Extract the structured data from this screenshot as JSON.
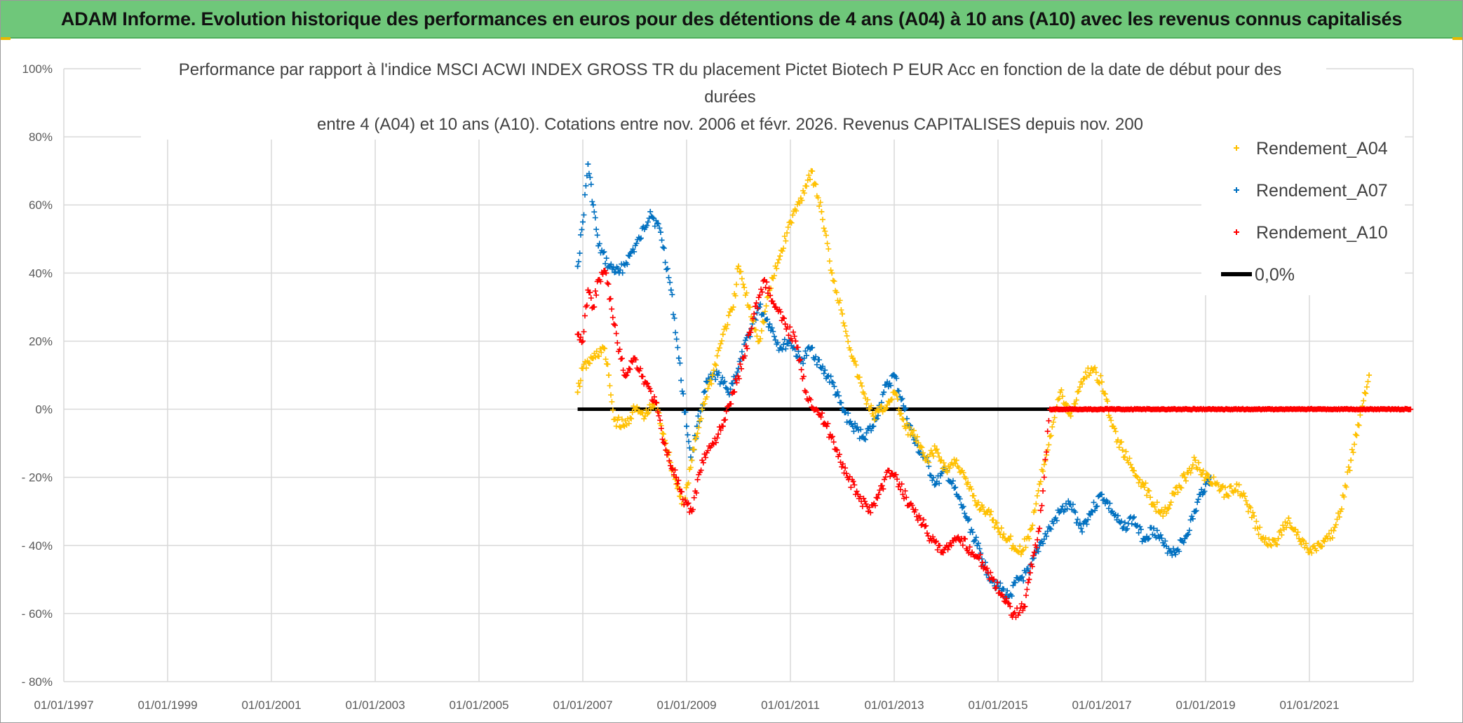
{
  "banner": {
    "title": "ADAM Informe. Evolution historique des performances en euros pour des détentions de 4 ans (A04) à 10 ans (A10) avec les revenus connus capitalisés"
  },
  "colors": {
    "a04": "#ffc000",
    "a07": "#0070c0",
    "a10": "#ff0000",
    "zero": "#000000",
    "banner": "#6fc77a",
    "grid": "#d9d9d9"
  },
  "chart_data": {
    "type": "scatter",
    "title_lines": [
      "Performance par rapport à l'indice MSCI ACWI INDEX GROSS TR  du placement Pictet Biotech P EUR Acc en fonction de la date de début pour des",
      "durées",
      "entre 4 (A04) et 10 ans (A10). Cotations entre nov. 2006 et févr. 2026. Revenus CAPITALISES depuis nov. 200"
    ],
    "x_axis": {
      "min": 1997.0,
      "max": 2023.0,
      "tick_values": [
        1997,
        1999,
        2001,
        2003,
        2005,
        2007,
        2009,
        2011,
        2013,
        2015,
        2017,
        2019,
        2021
      ],
      "tick_labels": [
        "01/01/1997",
        "01/01/1999",
        "01/01/2001",
        "01/01/2003",
        "01/01/2005",
        "01/01/2007",
        "01/01/2009",
        "01/01/2011",
        "01/01/2013",
        "01/01/2015",
        "01/01/2017",
        "01/01/2019",
        "01/01/2021"
      ]
    },
    "y_axis": {
      "min": -80,
      "max": 100,
      "tick_values": [
        100,
        80,
        60,
        40,
        20,
        0,
        -20,
        -40,
        -60,
        -80
      ],
      "tick_labels": [
        "100%",
        "80%",
        "60%",
        "40%",
        "20%",
        "0%",
        "- 20%",
        "- 40%",
        "- 60%",
        "- 80%"
      ]
    },
    "legend_position": "top-right",
    "series": [
      {
        "key": "a04",
        "name": "Rendement_A04",
        "marker": "+",
        "points": [
          [
            2006.9,
            5
          ],
          [
            2007.0,
            12
          ],
          [
            2007.2,
            15
          ],
          [
            2007.4,
            18
          ],
          [
            2007.5,
            10
          ],
          [
            2007.6,
            -3
          ],
          [
            2007.8,
            -5
          ],
          [
            2008.0,
            0
          ],
          [
            2008.2,
            -2
          ],
          [
            2008.4,
            2
          ],
          [
            2008.6,
            -10
          ],
          [
            2008.8,
            -22
          ],
          [
            2008.95,
            -28
          ],
          [
            2009.1,
            -15
          ],
          [
            2009.3,
            0
          ],
          [
            2009.5,
            10
          ],
          [
            2009.7,
            22
          ],
          [
            2009.9,
            30
          ],
          [
            2010.0,
            42
          ],
          [
            2010.2,
            30
          ],
          [
            2010.4,
            20
          ],
          [
            2010.6,
            35
          ],
          [
            2010.8,
            45
          ],
          [
            2011.0,
            55
          ],
          [
            2011.2,
            62
          ],
          [
            2011.4,
            70
          ],
          [
            2011.6,
            58
          ],
          [
            2011.8,
            40
          ],
          [
            2012.0,
            28
          ],
          [
            2012.2,
            15
          ],
          [
            2012.4,
            5
          ],
          [
            2012.6,
            -2
          ],
          [
            2012.8,
            0
          ],
          [
            2013.0,
            5
          ],
          [
            2013.2,
            -5
          ],
          [
            2013.4,
            -8
          ],
          [
            2013.6,
            -15
          ],
          [
            2013.8,
            -12
          ],
          [
            2014.0,
            -18
          ],
          [
            2014.2,
            -15
          ],
          [
            2014.4,
            -22
          ],
          [
            2014.6,
            -28
          ],
          [
            2014.8,
            -30
          ],
          [
            2015.0,
            -35
          ],
          [
            2015.2,
            -38
          ],
          [
            2015.4,
            -42
          ],
          [
            2015.6,
            -38
          ],
          [
            2015.8,
            -22
          ],
          [
            2016.0,
            -8
          ],
          [
            2016.2,
            5
          ],
          [
            2016.4,
            -2
          ],
          [
            2016.6,
            8
          ],
          [
            2016.8,
            12
          ],
          [
            2017.0,
            8
          ],
          [
            2017.2,
            -5
          ],
          [
            2017.4,
            -12
          ],
          [
            2017.6,
            -18
          ],
          [
            2017.8,
            -22
          ],
          [
            2018.0,
            -28
          ],
          [
            2018.2,
            -30
          ],
          [
            2018.4,
            -25
          ],
          [
            2018.6,
            -20
          ],
          [
            2018.8,
            -15
          ],
          [
            2019.0,
            -20
          ],
          [
            2019.2,
            -22
          ],
          [
            2019.4,
            -25
          ],
          [
            2019.6,
            -22
          ],
          [
            2019.8,
            -28
          ],
          [
            2020.0,
            -35
          ],
          [
            2020.2,
            -40
          ],
          [
            2020.4,
            -38
          ],
          [
            2020.6,
            -32
          ],
          [
            2020.8,
            -38
          ],
          [
            2021.0,
            -42
          ],
          [
            2021.2,
            -40
          ],
          [
            2021.4,
            -38
          ],
          [
            2021.6,
            -30
          ],
          [
            2021.8,
            -15
          ],
          [
            2022.0,
            0
          ],
          [
            2022.15,
            10
          ]
        ]
      },
      {
        "key": "a07",
        "name": "Rendement_A07",
        "marker": "+",
        "points": [
          [
            2006.9,
            42
          ],
          [
            2007.0,
            55
          ],
          [
            2007.1,
            72
          ],
          [
            2007.2,
            60
          ],
          [
            2007.3,
            48
          ],
          [
            2007.5,
            42
          ],
          [
            2007.7,
            40
          ],
          [
            2007.9,
            45
          ],
          [
            2008.1,
            50
          ],
          [
            2008.3,
            58
          ],
          [
            2008.5,
            52
          ],
          [
            2008.7,
            35
          ],
          [
            2008.85,
            15
          ],
          [
            2009.0,
            -5
          ],
          [
            2009.1,
            -15
          ],
          [
            2009.2,
            -5
          ],
          [
            2009.4,
            8
          ],
          [
            2009.6,
            10
          ],
          [
            2009.8,
            5
          ],
          [
            2010.0,
            12
          ],
          [
            2010.2,
            22
          ],
          [
            2010.4,
            30
          ],
          [
            2010.6,
            25
          ],
          [
            2010.8,
            18
          ],
          [
            2011.0,
            20
          ],
          [
            2011.2,
            14
          ],
          [
            2011.4,
            18
          ],
          [
            2011.6,
            12
          ],
          [
            2011.8,
            8
          ],
          [
            2012.0,
            0
          ],
          [
            2012.2,
            -5
          ],
          [
            2012.4,
            -8
          ],
          [
            2012.6,
            -5
          ],
          [
            2012.8,
            5
          ],
          [
            2013.0,
            10
          ],
          [
            2013.2,
            0
          ],
          [
            2013.4,
            -10
          ],
          [
            2013.6,
            -15
          ],
          [
            2013.8,
            -22
          ],
          [
            2014.0,
            -18
          ],
          [
            2014.2,
            -25
          ],
          [
            2014.4,
            -32
          ],
          [
            2014.6,
            -40
          ],
          [
            2014.8,
            -48
          ],
          [
            2015.0,
            -52
          ],
          [
            2015.2,
            -55
          ],
          [
            2015.4,
            -50
          ],
          [
            2015.6,
            -48
          ],
          [
            2015.8,
            -40
          ],
          [
            2016.0,
            -35
          ],
          [
            2016.2,
            -30
          ],
          [
            2016.4,
            -28
          ],
          [
            2016.6,
            -35
          ],
          [
            2016.8,
            -30
          ],
          [
            2017.0,
            -25
          ],
          [
            2017.2,
            -30
          ],
          [
            2017.4,
            -35
          ],
          [
            2017.6,
            -32
          ],
          [
            2017.8,
            -38
          ],
          [
            2018.0,
            -35
          ],
          [
            2018.2,
            -40
          ],
          [
            2018.4,
            -42
          ],
          [
            2018.6,
            -38
          ],
          [
            2018.8,
            -30
          ],
          [
            2018.9,
            -25
          ],
          [
            2019.0,
            -22
          ],
          [
            2019.1,
            -20
          ]
        ]
      },
      {
        "key": "a10",
        "name": "Rendement_A10",
        "marker": "+",
        "points": [
          [
            2006.9,
            22
          ],
          [
            2007.0,
            20
          ],
          [
            2007.1,
            35
          ],
          [
            2007.2,
            30
          ],
          [
            2007.3,
            38
          ],
          [
            2007.45,
            40
          ],
          [
            2007.6,
            25
          ],
          [
            2007.8,
            10
          ],
          [
            2008.0,
            15
          ],
          [
            2008.2,
            8
          ],
          [
            2008.4,
            2
          ],
          [
            2008.6,
            -12
          ],
          [
            2008.8,
            -20
          ],
          [
            2008.95,
            -28
          ],
          [
            2009.1,
            -30
          ],
          [
            2009.3,
            -15
          ],
          [
            2009.5,
            -10
          ],
          [
            2009.7,
            -5
          ],
          [
            2009.9,
            5
          ],
          [
            2010.1,
            15
          ],
          [
            2010.3,
            28
          ],
          [
            2010.5,
            38
          ],
          [
            2010.7,
            30
          ],
          [
            2010.9,
            25
          ],
          [
            2011.1,
            20
          ],
          [
            2011.3,
            5
          ],
          [
            2011.5,
            0
          ],
          [
            2011.7,
            -5
          ],
          [
            2011.9,
            -12
          ],
          [
            2012.1,
            -20
          ],
          [
            2012.3,
            -25
          ],
          [
            2012.5,
            -30
          ],
          [
            2012.7,
            -25
          ],
          [
            2012.9,
            -18
          ],
          [
            2013.1,
            -22
          ],
          [
            2013.3,
            -28
          ],
          [
            2013.5,
            -32
          ],
          [
            2013.7,
            -38
          ],
          [
            2013.9,
            -42
          ],
          [
            2014.1,
            -40
          ],
          [
            2014.3,
            -38
          ],
          [
            2014.5,
            -42
          ],
          [
            2014.7,
            -45
          ],
          [
            2014.9,
            -50
          ],
          [
            2015.1,
            -55
          ],
          [
            2015.3,
            -60
          ],
          [
            2015.5,
            -58
          ],
          [
            2015.6,
            -50
          ],
          [
            2015.7,
            -42
          ],
          [
            2015.8,
            -35
          ],
          [
            2016.0,
            0
          ],
          [
            2016.5,
            0
          ],
          [
            2017.0,
            0
          ],
          [
            2017.5,
            0
          ],
          [
            2018.0,
            0
          ],
          [
            2018.5,
            0
          ],
          [
            2019.0,
            0
          ],
          [
            2019.5,
            0
          ],
          [
            2020.0,
            0
          ],
          [
            2020.5,
            0
          ],
          [
            2021.0,
            0
          ],
          [
            2021.5,
            0
          ],
          [
            2022.0,
            0
          ],
          [
            2022.5,
            0
          ],
          [
            2022.95,
            0
          ]
        ]
      },
      {
        "key": "zero",
        "name": "0,0%",
        "marker": "line",
        "points": [
          [
            2006.9,
            0
          ],
          [
            2022.95,
            0
          ]
        ]
      }
    ]
  }
}
